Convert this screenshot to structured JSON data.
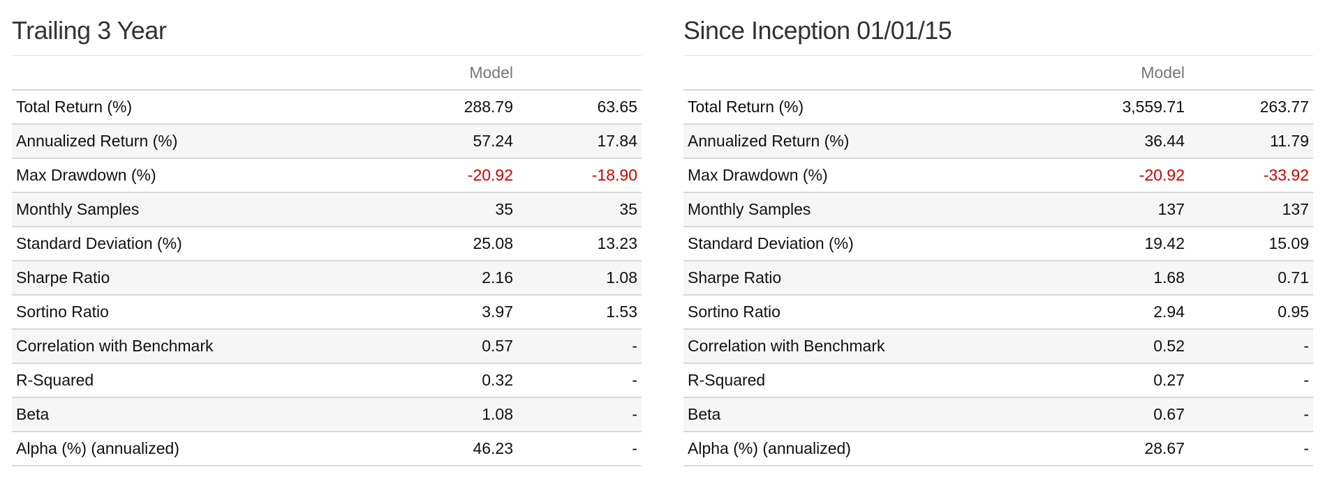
{
  "colors": {
    "negative": "#cc0000",
    "header_text": "#777777",
    "title_text": "#333333",
    "stripe": "#f6f6f6"
  },
  "panels": [
    {
      "title": "Trailing 3 Year",
      "columns": {
        "label": "",
        "model": "Model",
        "benchmark": ""
      },
      "rows": [
        {
          "label": "Total Return (%)",
          "model": "288.79",
          "benchmark": "63.65",
          "model_negative": false,
          "benchmark_negative": false
        },
        {
          "label": "Annualized Return (%)",
          "model": "57.24",
          "benchmark": "17.84",
          "model_negative": false,
          "benchmark_negative": false
        },
        {
          "label": "Max Drawdown (%)",
          "model": "-20.92",
          "benchmark": "-18.90",
          "model_negative": true,
          "benchmark_negative": true
        },
        {
          "label": "Monthly Samples",
          "model": "35",
          "benchmark": "35",
          "model_negative": false,
          "benchmark_negative": false
        },
        {
          "label": "Standard Deviation (%)",
          "model": "25.08",
          "benchmark": "13.23",
          "model_negative": false,
          "benchmark_negative": false
        },
        {
          "label": "Sharpe Ratio",
          "model": "2.16",
          "benchmark": "1.08",
          "model_negative": false,
          "benchmark_negative": false
        },
        {
          "label": "Sortino Ratio",
          "model": "3.97",
          "benchmark": "1.53",
          "model_negative": false,
          "benchmark_negative": false
        },
        {
          "label": "Correlation with Benchmark",
          "model": "0.57",
          "benchmark": "-",
          "model_negative": false,
          "benchmark_negative": false
        },
        {
          "label": "R-Squared",
          "model": "0.32",
          "benchmark": "-",
          "model_negative": false,
          "benchmark_negative": false
        },
        {
          "label": "Beta",
          "model": "1.08",
          "benchmark": "-",
          "model_negative": false,
          "benchmark_negative": false
        },
        {
          "label": "Alpha (%) (annualized)",
          "model": "46.23",
          "benchmark": "-",
          "model_negative": false,
          "benchmark_negative": false
        }
      ]
    },
    {
      "title": "Since Inception 01/01/15",
      "columns": {
        "label": "",
        "model": "Model",
        "benchmark": ""
      },
      "rows": [
        {
          "label": "Total Return (%)",
          "model": "3,559.71",
          "benchmark": "263.77",
          "model_negative": false,
          "benchmark_negative": false
        },
        {
          "label": "Annualized Return (%)",
          "model": "36.44",
          "benchmark": "11.79",
          "model_negative": false,
          "benchmark_negative": false
        },
        {
          "label": "Max Drawdown (%)",
          "model": "-20.92",
          "benchmark": "-33.92",
          "model_negative": true,
          "benchmark_negative": true
        },
        {
          "label": "Monthly Samples",
          "model": "137",
          "benchmark": "137",
          "model_negative": false,
          "benchmark_negative": false
        },
        {
          "label": "Standard Deviation (%)",
          "model": "19.42",
          "benchmark": "15.09",
          "model_negative": false,
          "benchmark_negative": false
        },
        {
          "label": "Sharpe Ratio",
          "model": "1.68",
          "benchmark": "0.71",
          "model_negative": false,
          "benchmark_negative": false
        },
        {
          "label": "Sortino Ratio",
          "model": "2.94",
          "benchmark": "0.95",
          "model_negative": false,
          "benchmark_negative": false
        },
        {
          "label": "Correlation with Benchmark",
          "model": "0.52",
          "benchmark": "-",
          "model_negative": false,
          "benchmark_negative": false
        },
        {
          "label": "R-Squared",
          "model": "0.27",
          "benchmark": "-",
          "model_negative": false,
          "benchmark_negative": false
        },
        {
          "label": "Beta",
          "model": "0.67",
          "benchmark": "-",
          "model_negative": false,
          "benchmark_negative": false
        },
        {
          "label": "Alpha (%) (annualized)",
          "model": "28.67",
          "benchmark": "-",
          "model_negative": false,
          "benchmark_negative": false
        }
      ]
    }
  ]
}
